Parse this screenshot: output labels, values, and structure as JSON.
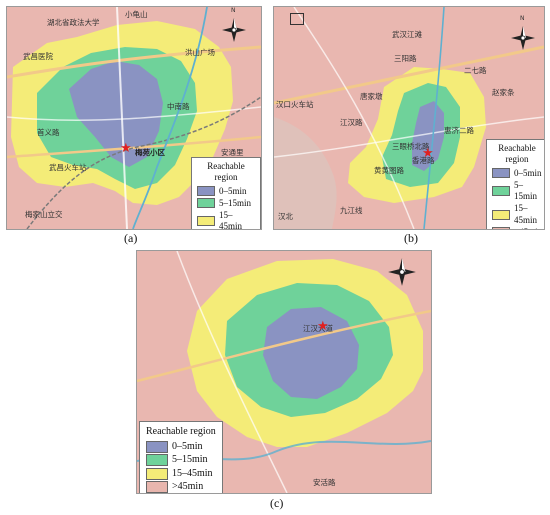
{
  "captions": {
    "a": "(a)",
    "b": "(b)",
    "c": "(c)"
  },
  "legend": {
    "title": "Reachable region",
    "items": [
      {
        "label": "0–5min",
        "color": "#8a93c2"
      },
      {
        "label": "5–15min",
        "color": "#6fd29a"
      },
      {
        "label": "15–45min",
        "color": "#f4ec78"
      },
      {
        "label": ">45min",
        "color": "#e8b6ae"
      }
    ]
  },
  "compass_label": "N",
  "map_labels": {
    "a": [
      "小龟山",
      "湖北省政法大学",
      "武昌医院",
      "洪山广场",
      "中南路",
      "首义路",
      "武昌火车站",
      "梅苑小区",
      "梅家山立交",
      "安通里"
    ],
    "b": [
      "武汉江滩",
      "汉口火车站",
      "三阳路",
      "江汉路",
      "唐家墩",
      "二七路",
      "赵家条",
      "惠济二路",
      "三眼桥北路",
      "香港路",
      "黄黄图路",
      "九江线",
      "汉北"
    ],
    "c": [
      "江汉大道",
      "安活路"
    ]
  },
  "chart_data": [
    {
      "panel": "a",
      "type": "isochrone-map",
      "categories": [
        "0–5min",
        "5–15min",
        "15–45min",
        ">45min"
      ],
      "origin_label": "梅苑小区",
      "legend_placement": "bottom-right"
    },
    {
      "panel": "b",
      "type": "isochrone-map",
      "categories": [
        "0–5min",
        "5–15min",
        "15–45min",
        ">45min"
      ],
      "origin_label": "惠济二路",
      "legend_placement": "bottom-right"
    },
    {
      "panel": "c",
      "type": "isochrone-map",
      "categories": [
        "0–5min",
        "5–15min",
        "15–45min",
        ">45min"
      ],
      "legend_placement": "bottom-left"
    }
  ]
}
